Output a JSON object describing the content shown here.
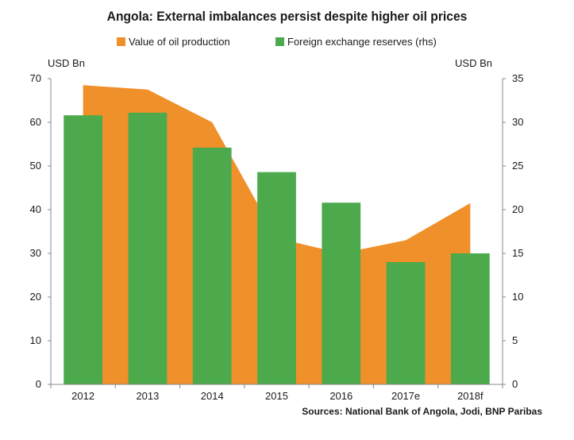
{
  "chart_data": {
    "type": "bar",
    "title": "Angola: External imbalances persist despite higher oil prices",
    "categories": [
      "2012",
      "2013",
      "2014",
      "2015",
      "2016",
      "2017e",
      "2018f"
    ],
    "series": [
      {
        "name": "Value of oil production",
        "kind": "area",
        "axis": "left",
        "color": "#f0902a",
        "values": [
          68.5,
          67.5,
          60,
          33.5,
          30,
          33,
          41.5
        ]
      },
      {
        "name": "Foreign exchange reserves (rhs)",
        "kind": "bar",
        "axis": "right",
        "color": "#4caa4c",
        "values": [
          30.8,
          31.1,
          27.1,
          24.3,
          20.8,
          14,
          15
        ]
      }
    ],
    "y_left": {
      "label": "USD Bn",
      "range": [
        0,
        70
      ],
      "ticks": [
        "0",
        "10",
        "20",
        "30",
        "40",
        "50",
        "60",
        "70"
      ]
    },
    "y_right": {
      "label": "USD Bn",
      "range": [
        0,
        35
      ],
      "ticks": [
        "0",
        "5",
        "10",
        "15",
        "20",
        "25",
        "30",
        "35"
      ]
    },
    "grid": false,
    "legend_position": "top",
    "source": "Sources: National Bank of Angola, Jodi, BNP Paribas"
  }
}
